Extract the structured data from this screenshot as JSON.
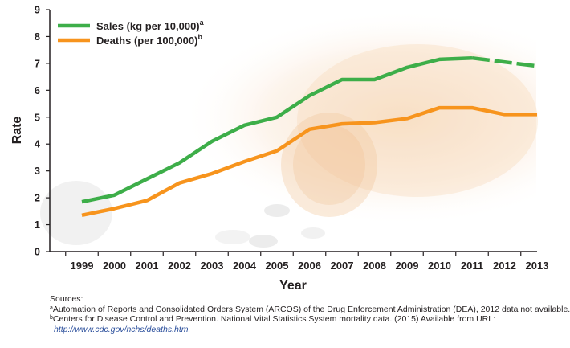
{
  "chart_data": {
    "type": "line",
    "ylabel": "Rate",
    "xlabel": "Year",
    "ylim": [
      0,
      9
    ],
    "yticks": [
      0,
      1,
      2,
      3,
      4,
      5,
      6,
      7,
      8,
      9
    ],
    "x": [
      1999,
      2000,
      2001,
      2002,
      2003,
      2004,
      2005,
      2006,
      2007,
      2008,
      2009,
      2010,
      2011,
      2012,
      2013
    ],
    "legend_position": "top-left",
    "grid": false,
    "series": [
      {
        "name": "Sales (kg per 10,000)",
        "marker": "a",
        "color": "#3dae49",
        "values": [
          1.85,
          2.1,
          2.7,
          3.3,
          4.1,
          4.7,
          5.0,
          5.8,
          6.4,
          6.4,
          6.85,
          7.15,
          7.2,
          null,
          6.9
        ]
      },
      {
        "name": "Deaths (per 100,000)",
        "marker": "b",
        "color": "#f7941d",
        "values": [
          1.35,
          1.6,
          1.9,
          2.55,
          2.9,
          3.35,
          3.75,
          4.55,
          4.75,
          4.8,
          4.95,
          5.35,
          5.35,
          5.1,
          5.1
        ]
      }
    ]
  },
  "sources": {
    "heading": "Sources:",
    "a_marker": "a",
    "a_text": "Automation of Reports and Consolidated Orders System (ARCOS) of the Drug Enforcement Administration (DEA), 2012 data not available.",
    "b_marker": "b",
    "b_text": "Centers for Disease Control and Prevention. National Vital Statistics System mortality data. (2015) Available from URL:",
    "url": "http://www.cdc.gov/nchs/deaths.htm."
  }
}
